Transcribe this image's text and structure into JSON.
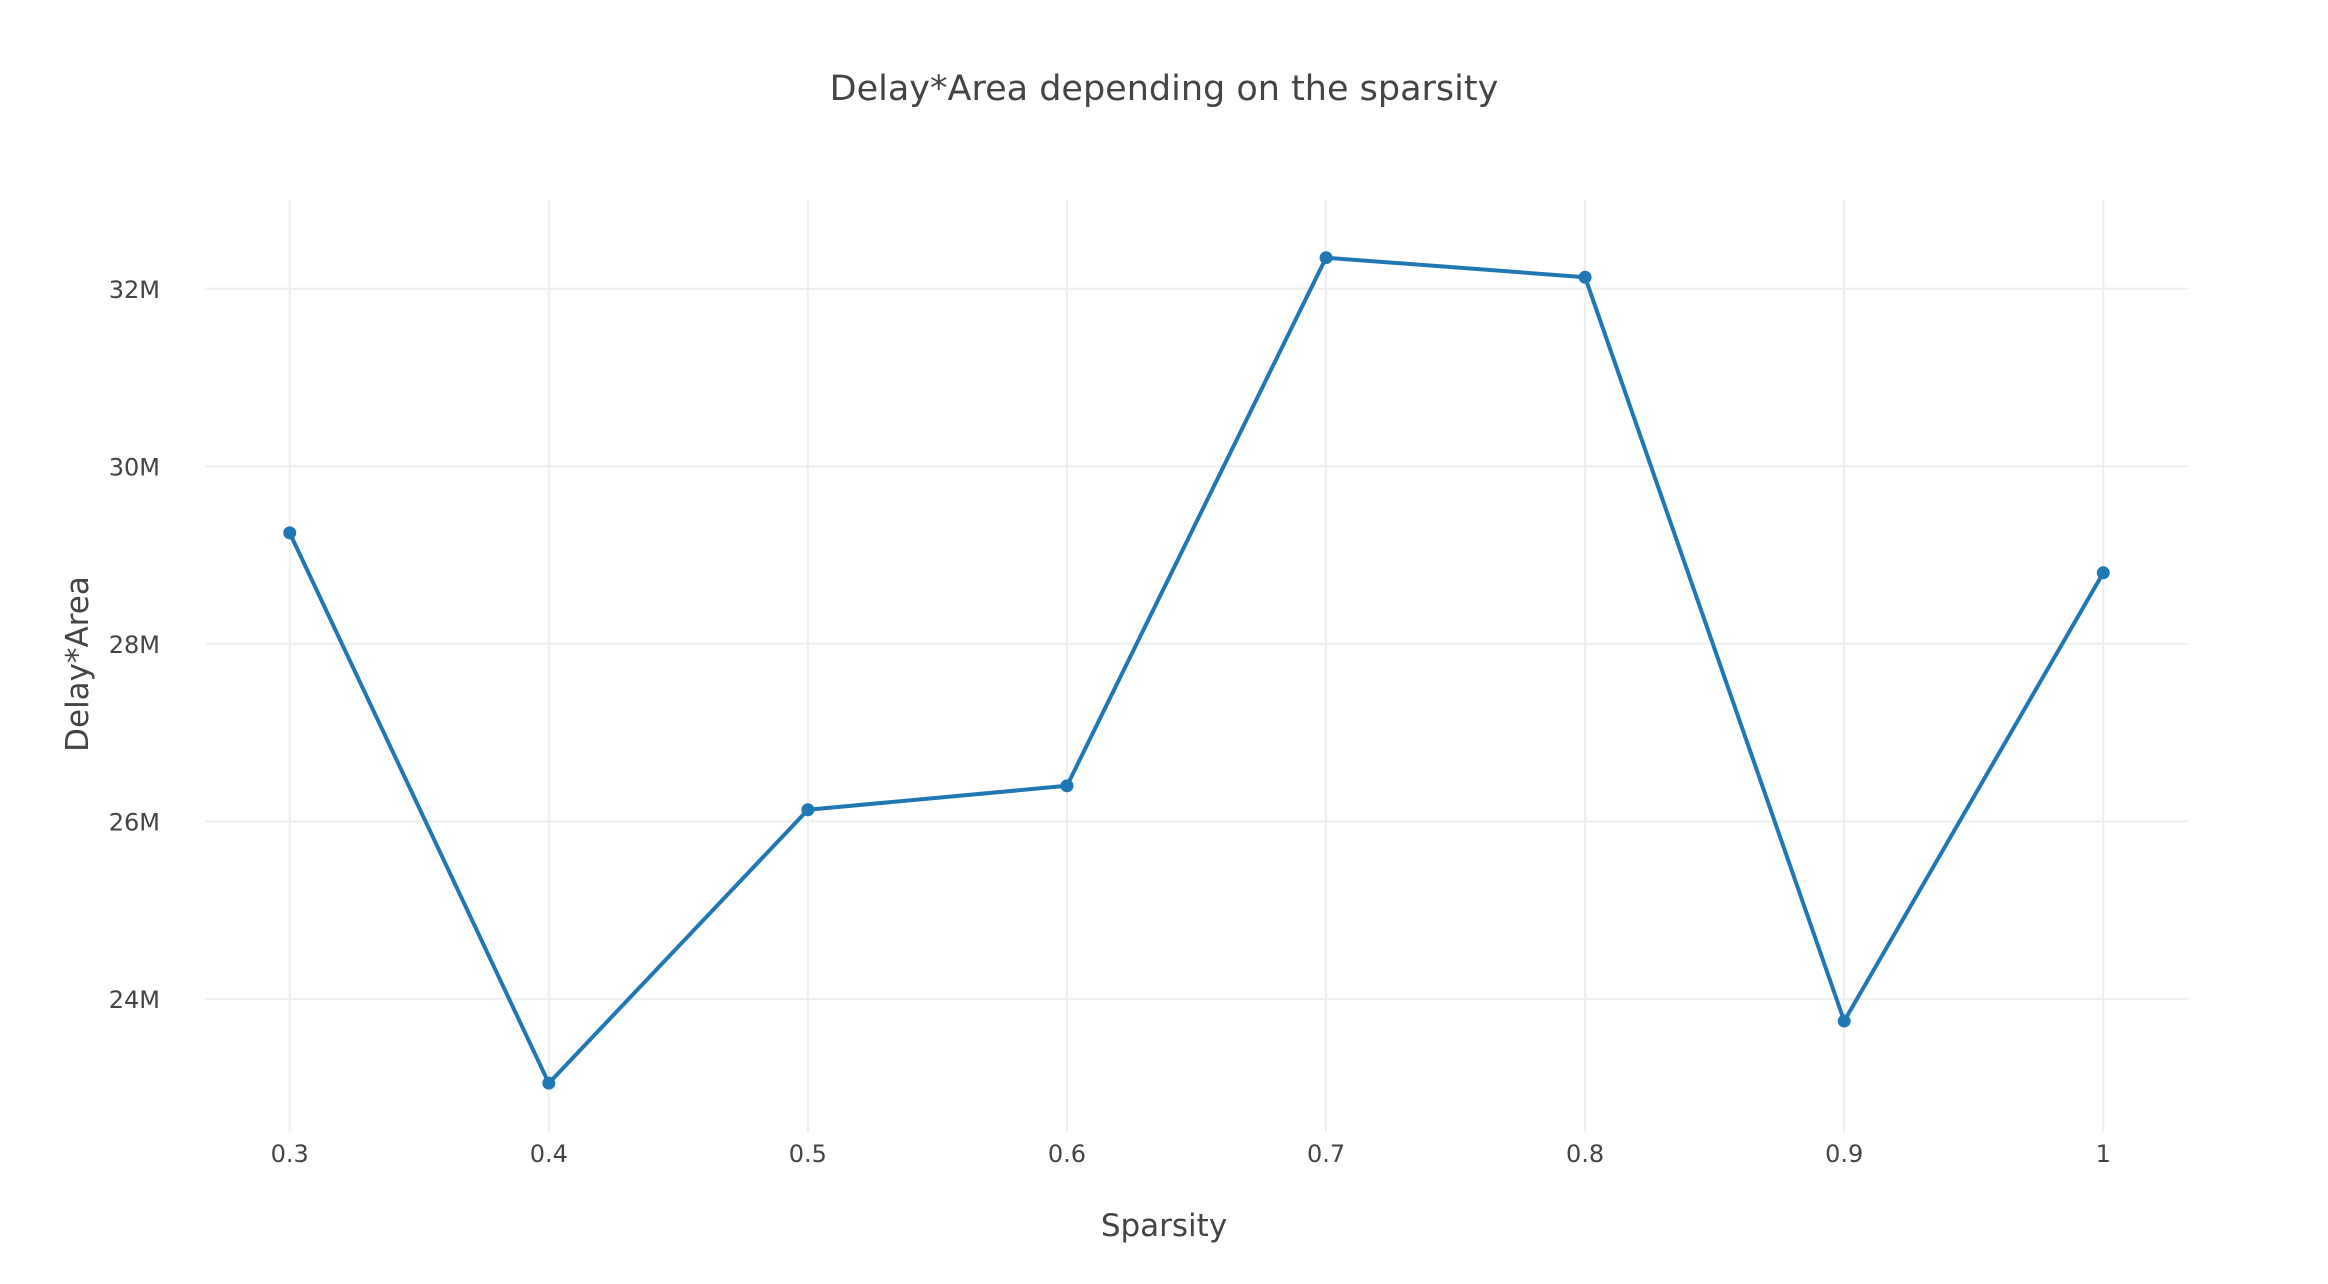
{
  "chart_data": {
    "type": "line",
    "title": "Delay*Area depending on the sparsity",
    "xlabel": "Sparsity",
    "ylabel": "Delay*Area",
    "x": [
      0.3,
      0.4,
      0.5,
      0.6,
      0.7,
      0.8,
      0.9,
      1
    ],
    "series": [
      {
        "values": [
          29250000,
          23050000,
          26130000,
          26400000,
          32350000,
          32130000,
          23750000,
          28800000
        ]
      }
    ],
    "x_ticks": [
      "0.3",
      "0.4",
      "0.5",
      "0.6",
      "0.7",
      "0.8",
      "0.9",
      "1"
    ],
    "x_tick_values": [
      0.3,
      0.4,
      0.5,
      0.6,
      0.7,
      0.8,
      0.9,
      1
    ],
    "y_ticks": [
      "24M",
      "26M",
      "28M",
      "30M",
      "32M"
    ],
    "y_tick_values": [
      24000000,
      26000000,
      28000000,
      30000000,
      32000000
    ],
    "xlim": [
      0.2673,
      1.0327
    ],
    "ylim": [
      22500000,
      33000000
    ],
    "grid": true,
    "legend": false,
    "colors": {
      "series": "#1f77b4",
      "grid": "#eeeeee",
      "text": "#444444"
    }
  }
}
